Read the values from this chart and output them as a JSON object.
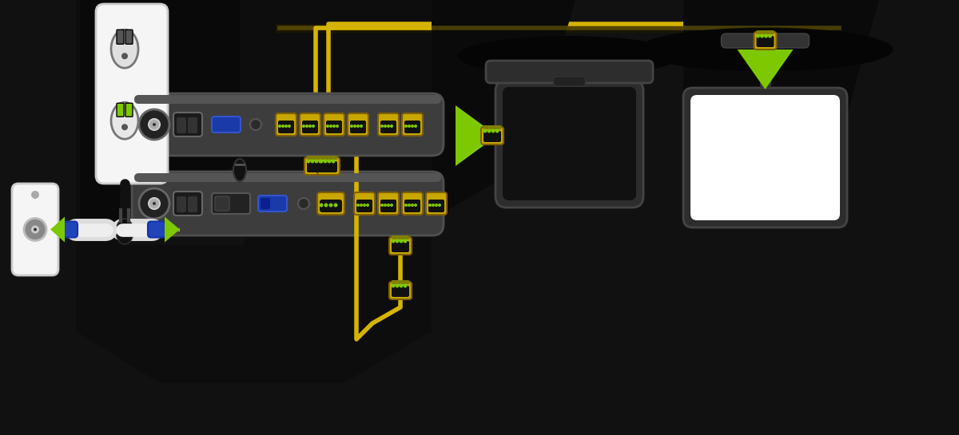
{
  "bg": "#111111",
  "dark_panel": "#0d0d0d",
  "yellow": "#d4b400",
  "yellow_port": "#c8a800",
  "yellow_bright": "#e0c000",
  "green": "#7dc800",
  "device_gray": "#3d3d3d",
  "device_top": "#555555",
  "white": "#ffffff",
  "near_white": "#f0f0f0",
  "blue_usb": "#1a3aaa",
  "black_cable": "#222222",
  "wall_white": "#f5f5f5",
  "connector_blue": "#2244bb",
  "coax_dark": "#222222",
  "shadow_dark": "#080808",
  "gray_cable": "#aaaaaa",
  "dark_shadow": "#181818"
}
